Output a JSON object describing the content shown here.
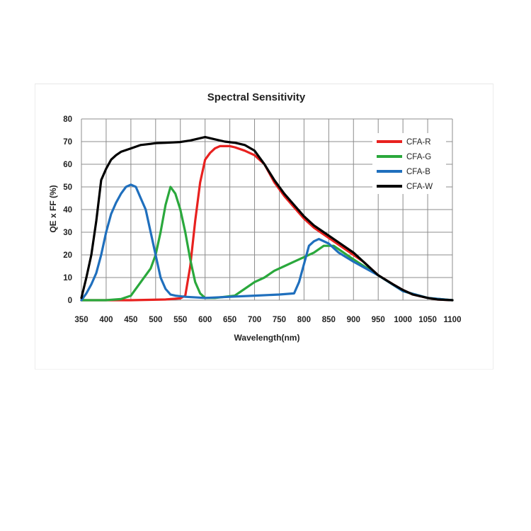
{
  "chart_data": {
    "type": "line",
    "title": "Spectral Sensitivity",
    "xlabel": "Wavelength(nm)",
    "ylabel": "QE x FF (%)",
    "xlim": [
      350,
      1100
    ],
    "ylim": [
      0,
      80
    ],
    "xticks": [
      350,
      400,
      450,
      500,
      550,
      600,
      650,
      700,
      750,
      800,
      850,
      900,
      950,
      1000,
      1050,
      1100
    ],
    "yticks": [
      0,
      10,
      20,
      30,
      40,
      50,
      60,
      70,
      80
    ],
    "grid": true,
    "legend_position": "top-right",
    "series": [
      {
        "name": "CFA-R",
        "color": "#e8211f",
        "x": [
          350,
          450,
          520,
          550,
          560,
          570,
          580,
          590,
          600,
          610,
          620,
          630,
          640,
          650,
          660,
          680,
          700,
          720,
          740,
          760,
          780,
          800,
          820,
          840,
          860,
          880,
          900,
          920,
          950,
          980,
          1000,
          1020,
          1050,
          1070,
          1100
        ],
        "y": [
          0,
          0,
          0.3,
          0.8,
          2,
          15,
          35,
          52,
          62,
          65,
          67,
          68,
          68,
          68,
          67.5,
          66,
          64,
          60,
          52,
          46,
          41,
          36,
          32,
          29,
          26,
          23,
          20,
          17,
          11,
          7,
          4.5,
          2.5,
          1,
          0.3,
          0
        ]
      },
      {
        "name": "CFA-G",
        "color": "#2aa83c",
        "x": [
          350,
          400,
          430,
          450,
          470,
          490,
          500,
          510,
          520,
          530,
          540,
          550,
          560,
          570,
          580,
          590,
          600,
          620,
          660,
          680,
          700,
          720,
          740,
          760,
          780,
          800,
          820,
          840,
          860,
          880,
          900,
          950,
          1000,
          1050,
          1100
        ],
        "y": [
          0,
          0,
          0.5,
          2,
          8,
          14,
          20,
          30,
          42,
          50,
          47,
          40,
          30,
          18,
          8,
          3,
          1,
          1,
          2,
          5,
          8,
          10,
          13,
          15,
          17,
          19,
          21,
          24,
          24,
          21,
          18,
          11,
          4,
          1,
          0
        ]
      },
      {
        "name": "CFA-B",
        "color": "#1f6fbd",
        "x": [
          350,
          360,
          370,
          380,
          390,
          400,
          410,
          420,
          430,
          440,
          450,
          460,
          470,
          480,
          490,
          500,
          510,
          520,
          530,
          540,
          560,
          600,
          650,
          700,
          750,
          780,
          790,
          800,
          810,
          820,
          830,
          850,
          870,
          900,
          950,
          1000,
          1050,
          1100
        ],
        "y": [
          0,
          3,
          7,
          12,
          20,
          30,
          38,
          43,
          47,
          50,
          51,
          50,
          45,
          40,
          30,
          20,
          10,
          5,
          2.5,
          2,
          1.5,
          1,
          1.5,
          2,
          2.5,
          3,
          8,
          16,
          24,
          26,
          27,
          25,
          21,
          17,
          11,
          4,
          1,
          0
        ]
      },
      {
        "name": "CFA-W",
        "color": "#000000",
        "x": [
          350,
          360,
          370,
          380,
          390,
          400,
          410,
          420,
          430,
          450,
          470,
          490,
          500,
          520,
          550,
          570,
          590,
          600,
          620,
          640,
          660,
          680,
          700,
          720,
          740,
          760,
          780,
          800,
          820,
          840,
          860,
          880,
          900,
          920,
          950,
          980,
          1000,
          1020,
          1050,
          1070,
          1100
        ],
        "y": [
          1,
          10,
          20,
          35,
          53,
          58,
          62,
          64,
          65.5,
          67,
          68.5,
          69,
          69.3,
          69.5,
          69.8,
          70.5,
          71.5,
          72,
          71,
          70,
          69.5,
          68.5,
          66,
          60,
          53,
          47,
          42,
          37,
          33,
          30,
          27,
          24,
          21,
          17,
          11,
          7,
          4.5,
          2.5,
          1,
          0.3,
          0
        ]
      }
    ]
  }
}
